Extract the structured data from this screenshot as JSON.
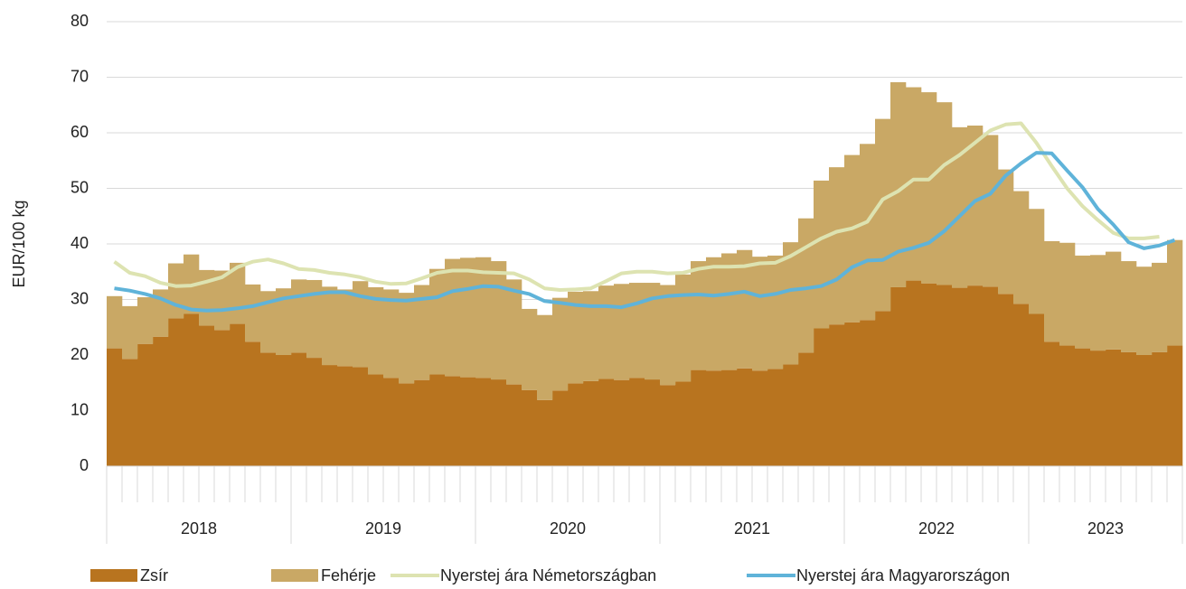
{
  "chart_data": {
    "type": "bar",
    "stacked": true,
    "y_label": "EUR/100 kg",
    "categories": [
      "2018",
      "2018",
      "2018",
      "2018",
      "2018",
      "2018",
      "2018",
      "2018",
      "2018",
      "2018",
      "2018",
      "2018",
      "2019",
      "2019",
      "2019",
      "2019",
      "2019",
      "2019",
      "2019",
      "2019",
      "2019",
      "2019",
      "2019",
      "2019",
      "2020",
      "2020",
      "2020",
      "2020",
      "2020",
      "2020",
      "2020",
      "2020",
      "2020",
      "2020",
      "2020",
      "2020",
      "2021",
      "2021",
      "2021",
      "2021",
      "2021",
      "2021",
      "2021",
      "2021",
      "2021",
      "2021",
      "2021",
      "2021",
      "2022",
      "2022",
      "2022",
      "2022",
      "2022",
      "2022",
      "2022",
      "2022",
      "2022",
      "2022",
      "2022",
      "2022",
      "2023",
      "2023",
      "2023",
      "2023",
      "2023",
      "2023",
      "2023",
      "2023",
      "2023",
      "2023"
    ],
    "series": [
      {
        "name": "Zsír",
        "type": "bar",
        "color": "#b8741f",
        "values": [
          21.2,
          19.3,
          22,
          23.3,
          26.6,
          27.4,
          25.3,
          24.5,
          25.6,
          22.4,
          20.4,
          20.0,
          20.4,
          19.5,
          18.2,
          18.0,
          17.8,
          16.5,
          15.9,
          14.9,
          15.5,
          16.5,
          16.2,
          16.0,
          15.9,
          15.6,
          14.7,
          13.7,
          11.9,
          13.6,
          14.9,
          15.3,
          15.7,
          15.5,
          15.9,
          15.6,
          14.6,
          15.2,
          17.3,
          17.2,
          17.3,
          17.6,
          17.2,
          17.5,
          18.3,
          20.4,
          24.8,
          25.5,
          25.9,
          26.3,
          27.9,
          32.2,
          33.4,
          32.9,
          32.6,
          32.1,
          32.5,
          32.3,
          31.0,
          29.2,
          27.4,
          22.4,
          21.7,
          21.2,
          20.8,
          21.0,
          20.5,
          20.0,
          20.5,
          21.7
        ]
      },
      {
        "name": "Fehérje",
        "type": "bar",
        "color": "#c9a865",
        "values": [
          9.4,
          9.5,
          8.4,
          8.5,
          9.9,
          10.7,
          10.0,
          10.7,
          11.0,
          10.3,
          11.1,
          12.0,
          13.2,
          14.0,
          14.1,
          13.8,
          15.5,
          15.7,
          15.9,
          16.3,
          17.1,
          19.0,
          21.1,
          21.5,
          21.7,
          21.3,
          18.9,
          14.6,
          15.3,
          16.7,
          16.5,
          16.2,
          16.8,
          17.3,
          17.1,
          17.4,
          18.0,
          19.3,
          19.6,
          20.4,
          21.0,
          21.3,
          20.5,
          20.4,
          22.0,
          24.2,
          26.6,
          28.3,
          30.1,
          31.7,
          34.6,
          36.9,
          34.8,
          34.4,
          32.9,
          28.9,
          28.8,
          27.3,
          22.4,
          20.3,
          18.9,
          18.1,
          18.5,
          16.7,
          17.2,
          17.6,
          16.4,
          15.9,
          16.1,
          19.0
        ]
      },
      {
        "name": "Nyerstej ára Németországban",
        "type": "line",
        "color": "#dde3b1",
        "values": [
          36.8,
          34.8,
          34.2,
          33.0,
          32.4,
          32.5,
          33.2,
          34.0,
          35.8,
          36.8,
          37.2,
          36.5,
          35.5,
          35.3,
          34.8,
          34.5,
          34.0,
          33.2,
          32.8,
          32.9,
          33.8,
          34.8,
          35.2,
          35.2,
          34.9,
          34.8,
          34.7,
          33.6,
          32.0,
          31.7,
          31.8,
          32.0,
          33.3,
          34.7,
          35.0,
          35.0,
          34.7,
          34.8,
          35.5,
          35.9,
          35.9,
          36.0,
          36.5,
          36.6,
          37.8,
          39.4,
          41.0,
          42.2,
          42.8,
          44.0,
          48.0,
          49.5,
          51.6,
          51.6,
          54.2,
          56.0,
          58.2,
          60.4,
          61.5,
          61.7,
          58.2,
          54.0,
          50.0,
          46.8,
          44.3,
          42.0,
          41.0,
          41.0,
          41.3,
          null
        ]
      },
      {
        "name": "Nyerstej ára Magyarországon",
        "type": "line",
        "color": "#5fb3d9",
        "values": [
          32.0,
          31.6,
          31.0,
          30.2,
          29.0,
          28.2,
          28.0,
          28.1,
          28.4,
          28.8,
          29.5,
          30.2,
          30.6,
          31.0,
          31.3,
          31.3,
          30.6,
          30.1,
          29.9,
          29.8,
          30.1,
          30.4,
          31.5,
          31.9,
          32.4,
          32.3,
          31.6,
          31.0,
          29.7,
          29.4,
          29.0,
          28.8,
          28.8,
          28.6,
          29.3,
          30.2,
          30.6,
          30.8,
          30.9,
          30.7,
          31.0,
          31.4,
          30.6,
          31.0,
          31.7,
          32.0,
          32.4,
          33.6,
          35.8,
          37.0,
          37.1,
          38.6,
          39.3,
          40.2,
          42.3,
          45.0,
          47.7,
          49.0,
          52.3,
          54.5,
          56.4,
          56.3,
          53.2,
          50.2,
          46.3,
          43.5,
          40.3,
          39.2,
          39.7,
          40.7
        ]
      }
    ],
    "ylim": [
      0,
      80
    ],
    "yticks": [
      0,
      10,
      20,
      30,
      40,
      50,
      60,
      70,
      80
    ],
    "grid": true,
    "legend": "bottom"
  }
}
